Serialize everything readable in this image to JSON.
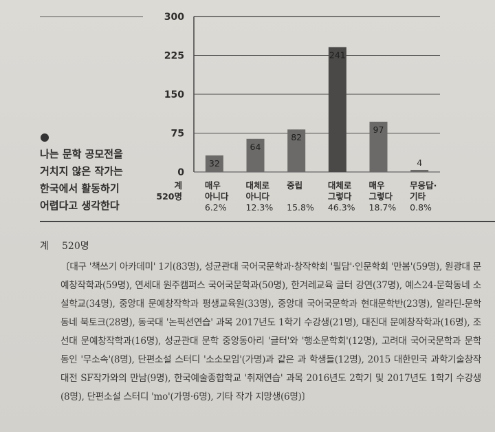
{
  "statement_lines": [
    "나는 문학 공모전을",
    "거치지 않은 작가는",
    "한국에서 활동하기",
    "어렵다고 생각한다"
  ],
  "total": {
    "label": "계",
    "value": "520명"
  },
  "chart_data": {
    "type": "bar",
    "categories": [
      [
        "매우",
        "아니다"
      ],
      [
        "대체로",
        "아니다"
      ],
      [
        "중립"
      ],
      [
        "대체로",
        "그렇다"
      ],
      [
        "매우",
        "그렇다"
      ],
      [
        "무응답·",
        "기타"
      ]
    ],
    "values": [
      32,
      64,
      82,
      241,
      97,
      4
    ],
    "percentages": [
      "6.2%",
      "12.3%",
      "15.8%",
      "46.3%",
      "18.7%",
      "0.8%"
    ],
    "yticks": [
      0,
      75,
      150,
      225,
      300
    ],
    "ylim": [
      0,
      300
    ],
    "grid": true,
    "bar_color": "#6b6a68",
    "bar_highlight_color": "#4a4948",
    "x_total_label": [
      "계",
      "520명"
    ]
  },
  "respondents": {
    "total_label": "계",
    "total_value": "520명",
    "text": "〔대구 '책쓰기 아카데미' 1기(83명), 성균관대 국어국문학과·창작학회 '필담'·인문학회 '만봄'(59명), 원광대 문예창작학과(59명), 연세대 원주캠퍼스 국어국문학과(50명), 한겨레교육 글터 강연(37명), 예스24-문학동네 소설학교(34명), 중앙대 문예창작학과 평생교육원(33명), 중앙대 국어국문학과 현대문학반(23명), 알라딘-문학동네 북토크(28명), 동국대 '논픽션연습' 과목 2017년도 1학기 수강생(21명), 대진대 문예창작학과(16명), 조선대 문예창작학과(16명), 성균관대 문학 중앙동아리 '글터'와 '행소문학회'(12명), 고려대 국어국문학과 문학 동인 '무소속'(8명), 단편소설 스터디 '소소모임'(가명)과 같은 과 학생들(12명), 2015 대한민국 과학기술창작대전 SF작가와의 만남(9명), 한국예술종합학교 '취재연습' 과목 2016년도 2학기 및 2017년도 1학기 수강생(8명), 단편소설 스터디 'mo'(가명·6명), 기타 작가 지망생(6명)〕"
  }
}
